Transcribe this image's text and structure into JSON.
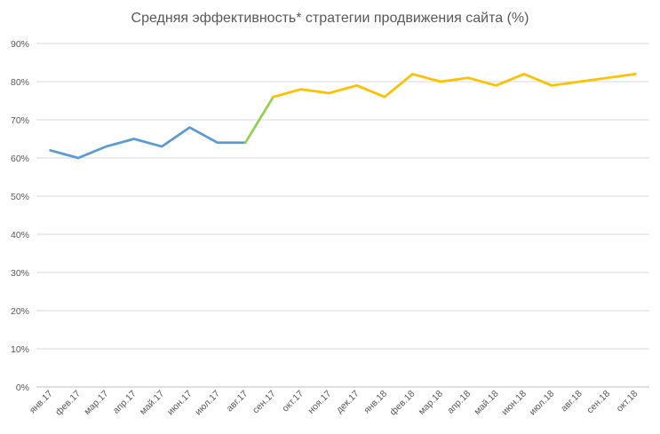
{
  "chart_data": {
    "type": "line",
    "title": "Средняя эффективность* стратегии продвижения сайта (%)",
    "xlabel": "",
    "ylabel": "",
    "ylim": [
      0,
      90
    ],
    "grid": true,
    "yticks": [
      "0%",
      "10%",
      "20%",
      "30%",
      "40%",
      "50%",
      "60%",
      "70%",
      "80%",
      "90%"
    ],
    "categories": [
      "янв.17",
      "фев.17",
      "мар.17",
      "апр.17",
      "май.17",
      "июн.17",
      "июл.17",
      "авг.17",
      "сен.17",
      "окт.17",
      "ноя.17",
      "дек.17",
      "янв.18",
      "фев.18",
      "мар.18",
      "апр.18",
      "май.18",
      "июн.18",
      "июл.18",
      "авг.18",
      "сен.18",
      "окт.18"
    ],
    "values": [
      62,
      60,
      63,
      65,
      63,
      68,
      64,
      64,
      76,
      78,
      77,
      79,
      76,
      82,
      80,
      81,
      79,
      82,
      79,
      80,
      81,
      82
    ],
    "segments": [
      {
        "name": "segment-1",
        "from": 0,
        "to": 7,
        "color": "#5b9bd5"
      },
      {
        "name": "segment-2",
        "from": 7,
        "to": 8,
        "color": "#92d050"
      },
      {
        "name": "segment-3",
        "from": 8,
        "to": 21,
        "color": "#ffc000"
      }
    ]
  }
}
